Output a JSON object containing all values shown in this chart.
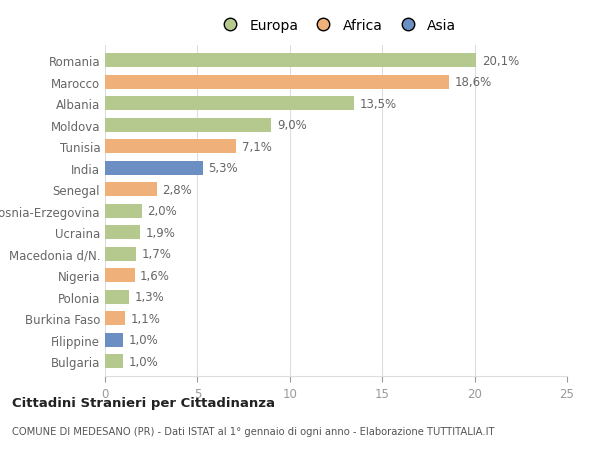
{
  "countries": [
    "Romania",
    "Marocco",
    "Albania",
    "Moldova",
    "Tunisia",
    "India",
    "Senegal",
    "Bosnia-Erzegovina",
    "Ucraina",
    "Macedonia d/N.",
    "Nigeria",
    "Polonia",
    "Burkina Faso",
    "Filippine",
    "Bulgaria"
  ],
  "values": [
    20.1,
    18.6,
    13.5,
    9.0,
    7.1,
    5.3,
    2.8,
    2.0,
    1.9,
    1.7,
    1.6,
    1.3,
    1.1,
    1.0,
    1.0
  ],
  "labels": [
    "20,1%",
    "18,6%",
    "13,5%",
    "9,0%",
    "7,1%",
    "5,3%",
    "2,8%",
    "2,0%",
    "1,9%",
    "1,7%",
    "1,6%",
    "1,3%",
    "1,1%",
    "1,0%",
    "1,0%"
  ],
  "continents": [
    "Europa",
    "Africa",
    "Europa",
    "Europa",
    "Africa",
    "Asia",
    "Africa",
    "Europa",
    "Europa",
    "Europa",
    "Africa",
    "Europa",
    "Africa",
    "Asia",
    "Europa"
  ],
  "colors": {
    "Europa": "#b5c98e",
    "Africa": "#f0b07a",
    "Asia": "#6b8fc2"
  },
  "xlim": [
    0,
    25
  ],
  "xticks": [
    0,
    5,
    10,
    15,
    20,
    25
  ],
  "title": "Cittadini Stranieri per Cittadinanza",
  "subtitle": "COMUNE DI MEDESANO (PR) - Dati ISTAT al 1° gennaio di ogni anno - Elaborazione TUTTITALIA.IT",
  "bg_color": "#ffffff",
  "grid_color": "#dddddd",
  "bar_height": 0.65,
  "label_fontsize": 8.5,
  "tick_fontsize": 8.5,
  "ytick_color": "#666666",
  "xtick_color": "#999999",
  "label_color": "#666666"
}
